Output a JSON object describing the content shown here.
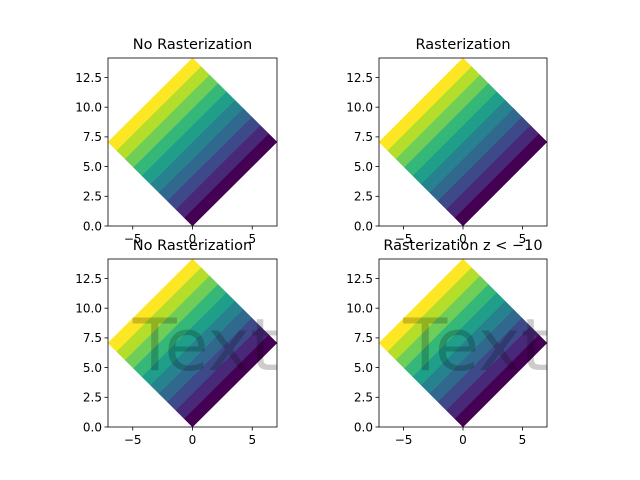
{
  "chart_data": [
    {
      "type": "heatmap",
      "title": "No Rasterization",
      "xlim": [
        -7.07,
        7.07
      ],
      "ylim": [
        0,
        14.14
      ],
      "xticks": [
        -5,
        0,
        5
      ],
      "yticks": [
        0.0,
        2.5,
        5.0,
        7.5,
        10.0,
        12.5
      ],
      "xticklabels": [
        "−5",
        "0",
        "5"
      ],
      "yticklabels": [
        "0.0",
        "2.5",
        "5.0",
        "7.5",
        "10.0",
        "12.5"
      ],
      "grid": false,
      "shape": "square rotated 45°, color bands vary along one edge direction",
      "levels": 10,
      "colormap": [
        "#440154",
        "#482878",
        "#3e4989",
        "#31688e",
        "#26828e",
        "#1f9e89",
        "#35b779",
        "#6ece58",
        "#b5de2b",
        "#fde725"
      ],
      "watermark": ""
    },
    {
      "type": "heatmap",
      "title": "Rasterization",
      "xlim": [
        -7.07,
        7.07
      ],
      "ylim": [
        0,
        14.14
      ],
      "xticks": [
        -5,
        0,
        5
      ],
      "yticks": [
        0.0,
        2.5,
        5.0,
        7.5,
        10.0,
        12.5
      ],
      "xticklabels": [
        "−5",
        "0",
        "5"
      ],
      "yticklabels": [
        "0.0",
        "2.5",
        "5.0",
        "7.5",
        "10.0",
        "12.5"
      ],
      "grid": false,
      "levels": 10,
      "colormap": [
        "#440154",
        "#482878",
        "#3e4989",
        "#31688e",
        "#26828e",
        "#1f9e89",
        "#35b779",
        "#6ece58",
        "#b5de2b",
        "#fde725"
      ],
      "watermark": ""
    },
    {
      "type": "heatmap",
      "title": "No Rasterization",
      "xlim": [
        -7.07,
        7.07
      ],
      "ylim": [
        0,
        14.14
      ],
      "xticks": [
        -5,
        0,
        5
      ],
      "yticks": [
        0.0,
        2.5,
        5.0,
        7.5,
        10.0,
        12.5
      ],
      "xticklabels": [
        "−5",
        "0",
        "5"
      ],
      "yticklabels": [
        "0.0",
        "2.5",
        "5.0",
        "7.5",
        "10.0",
        "12.5"
      ],
      "grid": false,
      "levels": 10,
      "colormap": [
        "#440154",
        "#482878",
        "#3e4989",
        "#31688e",
        "#26828e",
        "#1f9e89",
        "#35b779",
        "#6ece58",
        "#b5de2b",
        "#fde725"
      ],
      "watermark": "Text"
    },
    {
      "type": "heatmap",
      "title": "Rasterization z$<-10$",
      "xlim": [
        -7.07,
        7.07
      ],
      "ylim": [
        0,
        14.14
      ],
      "xticks": [
        -5,
        0,
        5
      ],
      "yticks": [
        0.0,
        2.5,
        5.0,
        7.5,
        10.0,
        12.5
      ],
      "xticklabels": [
        "−5",
        "0",
        "5"
      ],
      "yticklabels": [
        "0.0",
        "2.5",
        "5.0",
        "7.5",
        "10.0",
        "12.5"
      ],
      "grid": false,
      "levels": 10,
      "colormap": [
        "#440154",
        "#482878",
        "#3e4989",
        "#31688e",
        "#26828e",
        "#1f9e89",
        "#35b779",
        "#6ece58",
        "#b5de2b",
        "#fde725"
      ],
      "watermark": "Text"
    }
  ]
}
